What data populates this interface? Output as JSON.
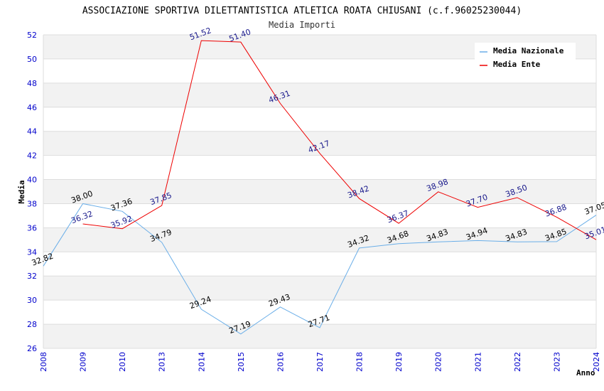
{
  "chart_data": {
    "type": "line",
    "title": "ASSOCIAZIONE SPORTIVA DILETTANTISTICA ATLETICA ROATA CHIUSANI (c.f.96025230044)",
    "subtitle": "Media Importi",
    "xlabel": "Anno",
    "ylabel": "Media",
    "ylim": [
      26,
      52
    ],
    "y_ticks": [
      "26",
      "28",
      "30",
      "32",
      "34",
      "36",
      "38",
      "40",
      "42",
      "44",
      "46",
      "48",
      "50",
      "52"
    ],
    "categories": [
      "2008",
      "2009",
      "2010",
      "2013",
      "2014",
      "2015",
      "2016",
      "2017",
      "2018",
      "2019",
      "2020",
      "2021",
      "2022",
      "2023",
      "2024"
    ],
    "grid": "horizontal bands",
    "legend_position": "top-right",
    "series": [
      {
        "name": "Media Nazionale",
        "color": "#6aaee8",
        "label_color": "#000000",
        "values": [
          32.82,
          38.0,
          37.36,
          34.79,
          29.24,
          27.19,
          29.43,
          27.71,
          34.32,
          34.68,
          34.83,
          34.94,
          34.83,
          34.85,
          37.05
        ],
        "labels": [
          "32.82",
          "38.00",
          "37.36",
          "34.79",
          "29.24",
          "27.19",
          "29.43",
          "27.71",
          "34.32",
          "34.68",
          "34.83",
          "34.94",
          "34.83",
          "34.85",
          "37.05"
        ]
      },
      {
        "name": "Media Ente",
        "color": "#ee0000",
        "label_color": "#1a1a8c",
        "values": [
          null,
          36.32,
          35.92,
          37.85,
          51.52,
          51.4,
          46.31,
          42.17,
          38.42,
          36.37,
          38.98,
          37.7,
          38.5,
          36.88,
          35.01
        ],
        "labels": [
          "",
          "36.32",
          "35.92",
          "37.85",
          "51.52",
          "51.40",
          "46.31",
          "42.17",
          "38.42",
          "36.37",
          "38.98",
          "37.70",
          "38.50",
          "36.88",
          "35.01"
        ]
      }
    ]
  }
}
